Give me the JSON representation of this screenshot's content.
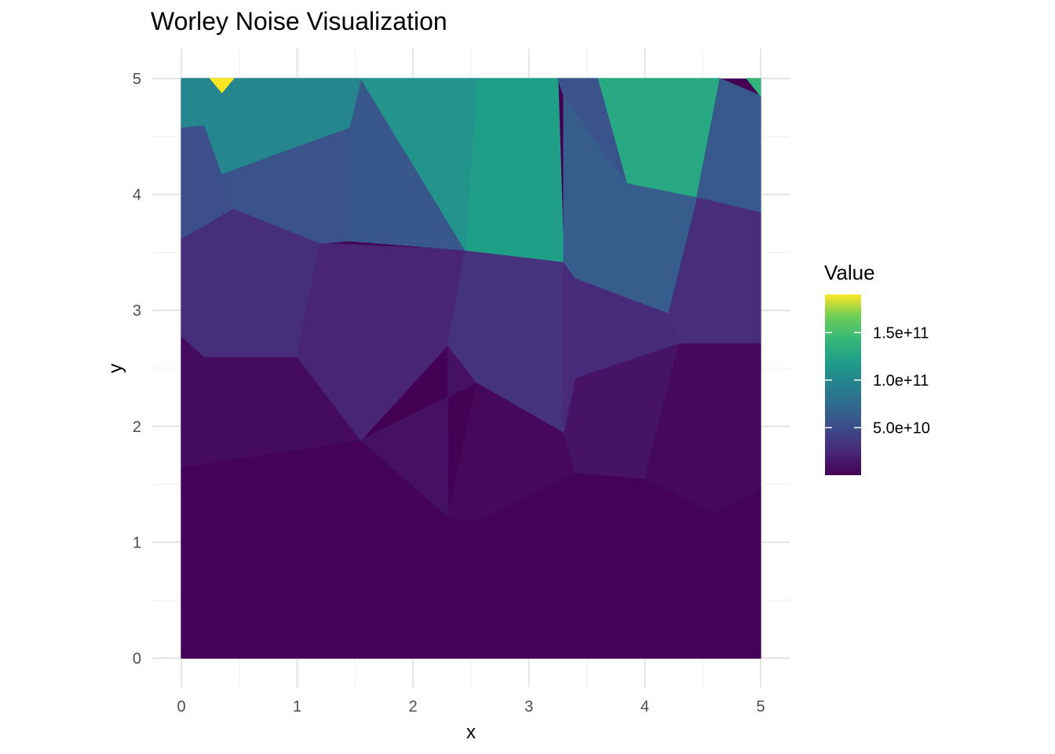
{
  "chart_data": {
    "type": "heatmap",
    "title": "Worley Noise Visualization",
    "xlabel": "x",
    "ylabel": "y",
    "xlim": [
      0,
      5
    ],
    "ylim": [
      0,
      5
    ],
    "x_ticks": [
      "0",
      "1",
      "2",
      "3",
      "4",
      "5"
    ],
    "y_ticks": [
      "0",
      "1",
      "2",
      "3",
      "4",
      "5"
    ],
    "grid": true,
    "colormap": "viridis",
    "legend": {
      "title": "Value",
      "position": "right",
      "min": 0,
      "max": 190000000000,
      "breaks": [
        {
          "value": 150000000000,
          "label": "1.5e+11"
        },
        {
          "value": 100000000000,
          "label": "1.0e+11"
        },
        {
          "value": 50000000000,
          "label": "5.0e+10"
        }
      ]
    },
    "cells": [
      {
        "polygon": [
          [
            0,
            0
          ],
          [
            5,
            0
          ],
          [
            5,
            1.45
          ],
          [
            4.6,
            1.25
          ],
          [
            4.0,
            1.55
          ],
          [
            3.4,
            1.6
          ],
          [
            2.55,
            1.18
          ],
          [
            2.3,
            1.22
          ],
          [
            1.55,
            1.88
          ],
          [
            0,
            1.65
          ]
        ],
        "value": 1000000000
      },
      {
        "polygon": [
          [
            0,
            1.65
          ],
          [
            1.55,
            1.88
          ],
          [
            1.0,
            2.6
          ],
          [
            0.2,
            2.6
          ],
          [
            0,
            2.78
          ]
        ],
        "value": 6000000000
      },
      {
        "polygon": [
          [
            1.55,
            1.88
          ],
          [
            2.3,
            1.22
          ],
          [
            2.3,
            2.7
          ],
          [
            2.55,
            2.38
          ]
        ],
        "value": 10000000000
      },
      {
        "polygon": [
          [
            2.55,
            1.18
          ],
          [
            3.4,
            1.6
          ],
          [
            3.3,
            1.95
          ],
          [
            2.55,
            2.38
          ],
          [
            2.3,
            1.22
          ]
        ],
        "value": 4000000000
      },
      {
        "polygon": [
          [
            3.4,
            1.6
          ],
          [
            4.0,
            1.55
          ],
          [
            4.3,
            2.72
          ],
          [
            3.4,
            2.42
          ],
          [
            3.3,
            1.95
          ]
        ],
        "value": 11000000000
      },
      {
        "polygon": [
          [
            4.0,
            1.55
          ],
          [
            4.6,
            1.25
          ],
          [
            5,
            1.45
          ],
          [
            5,
            2.72
          ],
          [
            4.3,
            2.72
          ]
        ],
        "value": 5000000000
      },
      {
        "polygon": [
          [
            0,
            2.78
          ],
          [
            0.2,
            2.6
          ],
          [
            1.0,
            2.6
          ],
          [
            1.2,
            3.58
          ],
          [
            0.45,
            3.88
          ],
          [
            0,
            3.62
          ]
        ],
        "value": 28000000000
      },
      {
        "polygon": [
          [
            1.0,
            2.6
          ],
          [
            1.55,
            1.88
          ],
          [
            2.3,
            2.7
          ],
          [
            2.45,
            3.52
          ],
          [
            1.2,
            3.58
          ]
        ],
        "value": 22000000000
      },
      {
        "polygon": [
          [
            2.3,
            2.7
          ],
          [
            2.55,
            2.38
          ],
          [
            3.3,
            1.95
          ],
          [
            3.3,
            3.42
          ],
          [
            2.45,
            3.52
          ]
        ],
        "value": 32000000000
      },
      {
        "polygon": [
          [
            3.3,
            3.42
          ],
          [
            3.3,
            1.95
          ],
          [
            3.4,
            2.42
          ],
          [
            4.3,
            2.72
          ],
          [
            4.2,
            2.98
          ],
          [
            3.4,
            3.28
          ]
        ],
        "value": 26000000000
      },
      {
        "polygon": [
          [
            4.3,
            2.72
          ],
          [
            5,
            2.72
          ],
          [
            5,
            3.85
          ],
          [
            4.45,
            3.98
          ],
          [
            4.2,
            2.98
          ]
        ],
        "value": 27000000000
      },
      {
        "polygon": [
          [
            0,
            3.62
          ],
          [
            0.45,
            3.88
          ],
          [
            0.35,
            4.18
          ],
          [
            0.2,
            4.6
          ],
          [
            0,
            4.58
          ]
        ],
        "value": 52000000000
      },
      {
        "polygon": [
          [
            0.35,
            4.18
          ],
          [
            0.45,
            3.88
          ],
          [
            1.2,
            3.58
          ],
          [
            1.45,
            3.6
          ],
          [
            1.45,
            4.58
          ]
        ],
        "value": 55000000000
      },
      {
        "polygon": [
          [
            1.45,
            3.6
          ],
          [
            2.45,
            3.52
          ],
          [
            1.55,
            5
          ],
          [
            1.45,
            4.58
          ]
        ],
        "value": 58000000000
      },
      {
        "polygon": [
          [
            2.45,
            3.52
          ],
          [
            3.3,
            3.42
          ],
          [
            3.25,
            5
          ],
          [
            2.55,
            5
          ]
        ],
        "value": 120000000000
      },
      {
        "polygon": [
          [
            3.3,
            3.42
          ],
          [
            3.4,
            3.28
          ],
          [
            4.2,
            2.98
          ],
          [
            4.45,
            3.98
          ],
          [
            3.85,
            4.1
          ],
          [
            3.3,
            4.85
          ]
        ],
        "value": 63000000000
      },
      {
        "polygon": [
          [
            3.3,
            4.85
          ],
          [
            3.85,
            4.1
          ],
          [
            3.6,
            5
          ],
          [
            3.25,
            5
          ]
        ],
        "value": 55000000000
      },
      {
        "polygon": [
          [
            3.85,
            4.1
          ],
          [
            4.45,
            3.98
          ],
          [
            4.65,
            5
          ],
          [
            3.6,
            5
          ]
        ],
        "value": 128000000000
      },
      {
        "polygon": [
          [
            4.45,
            3.98
          ],
          [
            5,
            3.85
          ],
          [
            5,
            4.85
          ],
          [
            4.65,
            5
          ]
        ],
        "value": 60000000000
      },
      {
        "polygon": [
          [
            4.88,
            5
          ],
          [
            5,
            4.85
          ],
          [
            5,
            5
          ]
        ],
        "value": 140000000000
      },
      {
        "polygon": [
          [
            0,
            4.58
          ],
          [
            0.2,
            4.6
          ],
          [
            0.35,
            4.18
          ],
          [
            1.45,
            4.58
          ],
          [
            1.55,
            5
          ],
          [
            0,
            5
          ]
        ],
        "value": 98000000000
      },
      {
        "polygon": [
          [
            1.55,
            5
          ],
          [
            2.45,
            3.52
          ],
          [
            2.55,
            5
          ]
        ],
        "value": 110000000000
      },
      {
        "polygon": [
          [
            0.25,
            5
          ],
          [
            0.45,
            5
          ],
          [
            0.35,
            4.88
          ]
        ],
        "value": 190000000000
      }
    ]
  }
}
